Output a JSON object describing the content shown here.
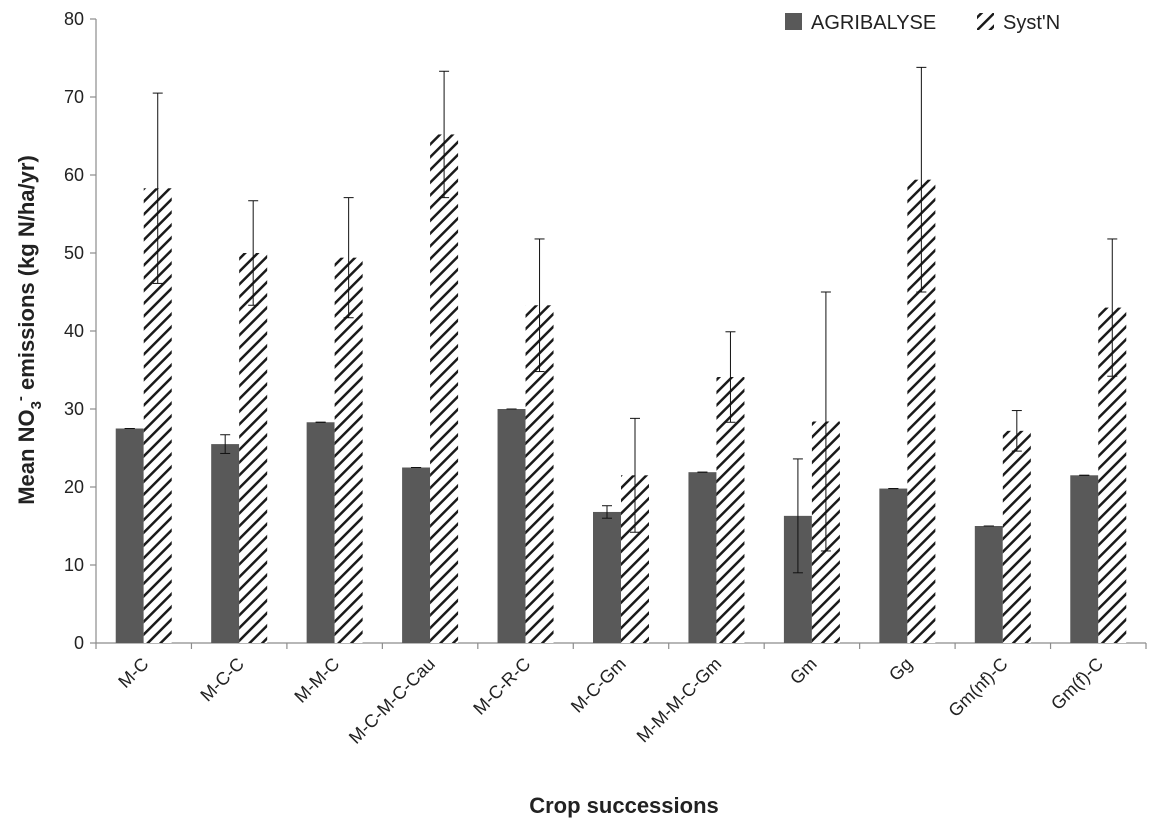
{
  "chart_data": {
    "type": "bar",
    "xlabel": "Crop successions",
    "ylabel_main": "Mean NO",
    "ylabel_sub": "3",
    "ylabel_sup": "-",
    "ylabel_rest": " emissions (kg N/ha/yr)",
    "ylim": [
      0,
      80
    ],
    "yticks": [
      0,
      10,
      20,
      30,
      40,
      50,
      60,
      70,
      80
    ],
    "grid": false,
    "legend_position": "top-right",
    "categories": [
      "M-C",
      "M-C-C",
      "M-M-C",
      "M-C-M-C-Cau",
      "M-C-R-C",
      "M-C-Gm",
      "M-M-M-C-Gm",
      "Gm",
      "Gg",
      "Gm(nf)-C",
      "Gm(f)-C"
    ],
    "series": [
      {
        "name": "AGRIBALYSE",
        "fill": "solid",
        "color": "#595959",
        "values": [
          27.5,
          25.5,
          28.3,
          22.5,
          30.0,
          16.8,
          21.9,
          16.3,
          19.8,
          15.0,
          21.5
        ],
        "error": [
          0,
          1.2,
          0,
          0,
          0,
          0.8,
          0,
          7.3,
          0,
          0,
          0
        ]
      },
      {
        "name": "Syst'N",
        "fill": "hatched",
        "color": "#1a1a1a",
        "values": [
          58.3,
          50.0,
          49.4,
          65.2,
          43.3,
          21.5,
          34.1,
          28.4,
          59.4,
          27.2,
          43.0
        ],
        "error": [
          12.2,
          6.7,
          7.7,
          8.1,
          8.5,
          7.3,
          5.8,
          16.6,
          14.4,
          2.6,
          8.8
        ]
      }
    ]
  }
}
